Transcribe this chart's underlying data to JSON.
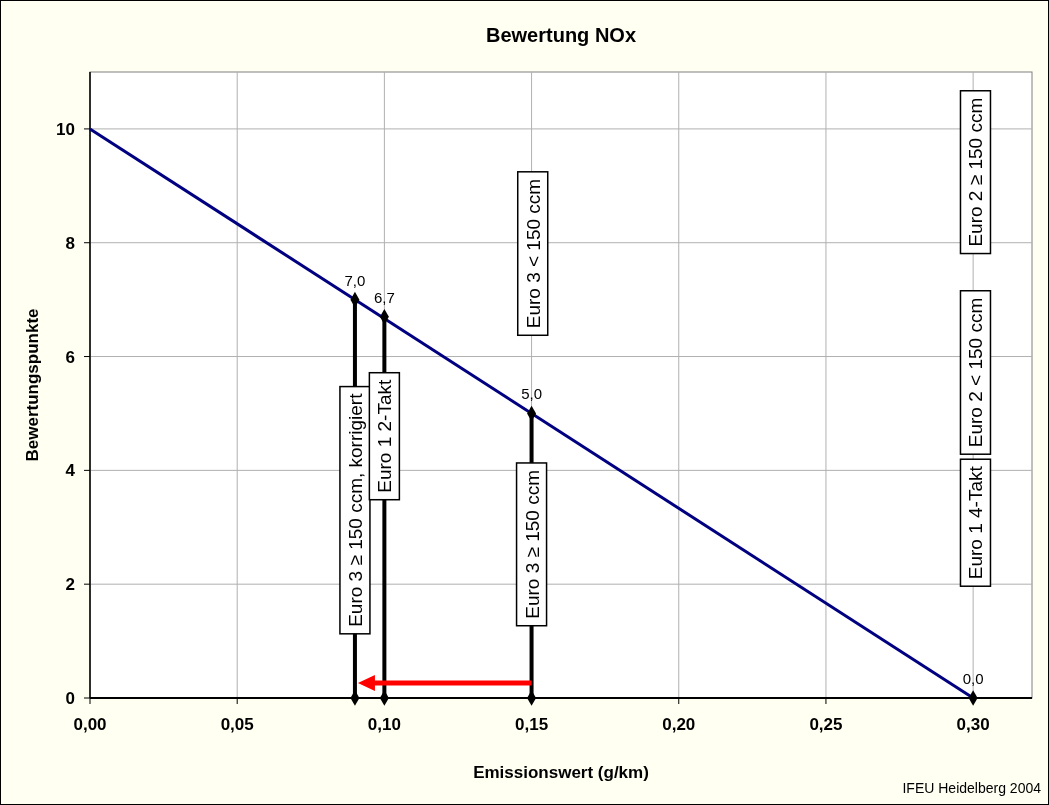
{
  "chart_data": {
    "type": "line",
    "title": "Bewertung NOx",
    "xlabel": "Emissionswert (g/km)",
    "ylabel": "Bewertungspunkte",
    "xlim": [
      0,
      0.32
    ],
    "xticks": [
      {
        "value": 0,
        "label": "0,00"
      },
      {
        "value": 0.05,
        "label": "0,05"
      },
      {
        "value": 0.1,
        "label": "0,10"
      },
      {
        "value": 0.15,
        "label": "0,15"
      },
      {
        "value": 0.2,
        "label": "0,20"
      },
      {
        "value": 0.25,
        "label": "0,25"
      },
      {
        "value": 0.3,
        "label": "0,30"
      }
    ],
    "ylim": [
      0,
      11
    ],
    "yticks": [
      0,
      2,
      4,
      6,
      8,
      10
    ],
    "grid": true,
    "series": [
      {
        "color": "#000080",
        "x": [
          0,
          0.3
        ],
        "values": [
          10,
          0
        ],
        "marker": "none"
      },
      {
        "type": "line",
        "color": "#000000",
        "x": [
          0.09,
          0.09
        ],
        "values": [
          0,
          7.0
        ],
        "marker": "diamond",
        "value_labels": [
          null,
          "7,0"
        ]
      },
      {
        "type": "line",
        "color": "#000000",
        "x": [
          0.1,
          0.1
        ],
        "values": [
          0,
          6.7
        ],
        "marker": "diamond",
        "value_labels": [
          null,
          "6,7"
        ]
      },
      {
        "type": "line",
        "color": "#000000",
        "x": [
          0.15,
          0.15
        ],
        "values": [
          0,
          5.0
        ],
        "marker": "diamond",
        "value_labels": [
          null,
          "5,0"
        ]
      },
      {
        "type": "scatter",
        "color": "#000000",
        "x": [
          0.3
        ],
        "values": [
          0
        ],
        "marker": "diamond",
        "value_labels": [
          "0,0"
        ]
      }
    ],
    "annotations": [
      {
        "text": "Euro 3 ≥ 150 ccm, korrigiert",
        "x": 0.09,
        "y": 3.3
      },
      {
        "text": "Euro 1 2-Takt",
        "x": 0.1,
        "y": 4.6
      },
      "Euro 3 < 150 ccm",
      {
        "text": "Euro 3 ≥ 150 ccm",
        "x": 0.15,
        "y": 2.7
      },
      "Euro 2 ≥ 150 ccm",
      "Euro 2 < 150 ccm",
      "Euro 1 4-Takt",
      "IFEU Heidelberg 2004"
    ]
  }
}
